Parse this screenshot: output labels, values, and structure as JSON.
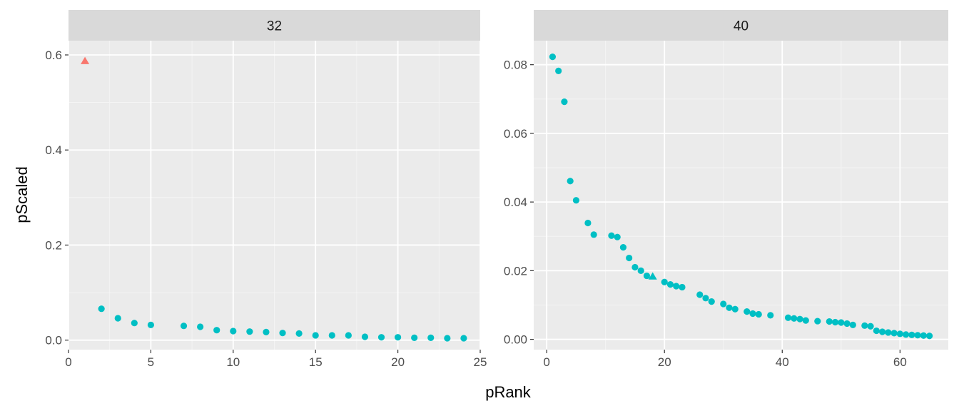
{
  "chart_data": {
    "type": "scatter",
    "layout": "faceted",
    "xlabel": "pRank",
    "ylabel": "pScaled",
    "grid": true,
    "colors": {
      "panel_bg": "#ebebeb",
      "strip_bg": "#d9d9d9",
      "grid_major": "#ffffff",
      "grid_minor": "#f5f5f5",
      "tick": "#333333",
      "group_triangle": "#f8766d",
      "group_circle": "#00bfc4"
    },
    "facets": [
      {
        "label": "32",
        "xlim": [
          0,
          25
        ],
        "ylim": [
          -0.02,
          0.63
        ],
        "xticks": [
          0,
          5,
          10,
          15,
          20,
          25
        ],
        "xtick_labels": [
          "0",
          "5",
          "10",
          "15",
          "20",
          "25"
        ],
        "yticks": [
          0,
          0.2,
          0.4,
          0.6
        ],
        "ytick_labels": [
          "0.0",
          "0.2",
          "0.4",
          "0.6"
        ],
        "points": [
          {
            "x": 1,
            "y": 0.587,
            "shape": "triangle",
            "color": "#f8766d"
          },
          {
            "x": 2,
            "y": 0.066,
            "shape": "circle",
            "color": "#00bfc4"
          },
          {
            "x": 3,
            "y": 0.046,
            "shape": "circle",
            "color": "#00bfc4"
          },
          {
            "x": 4,
            "y": 0.036,
            "shape": "circle",
            "color": "#00bfc4"
          },
          {
            "x": 5,
            "y": 0.032,
            "shape": "circle",
            "color": "#00bfc4"
          },
          {
            "x": 7,
            "y": 0.03,
            "shape": "circle",
            "color": "#00bfc4"
          },
          {
            "x": 8,
            "y": 0.028,
            "shape": "circle",
            "color": "#00bfc4"
          },
          {
            "x": 9,
            "y": 0.021,
            "shape": "circle",
            "color": "#00bfc4"
          },
          {
            "x": 10,
            "y": 0.019,
            "shape": "circle",
            "color": "#00bfc4"
          },
          {
            "x": 11,
            "y": 0.018,
            "shape": "circle",
            "color": "#00bfc4"
          },
          {
            "x": 12,
            "y": 0.017,
            "shape": "circle",
            "color": "#00bfc4"
          },
          {
            "x": 13,
            "y": 0.015,
            "shape": "circle",
            "color": "#00bfc4"
          },
          {
            "x": 14,
            "y": 0.014,
            "shape": "circle",
            "color": "#00bfc4"
          },
          {
            "x": 15,
            "y": 0.01,
            "shape": "circle",
            "color": "#00bfc4"
          },
          {
            "x": 16,
            "y": 0.01,
            "shape": "circle",
            "color": "#00bfc4"
          },
          {
            "x": 17,
            "y": 0.01,
            "shape": "circle",
            "color": "#00bfc4"
          },
          {
            "x": 18,
            "y": 0.007,
            "shape": "circle",
            "color": "#00bfc4"
          },
          {
            "x": 19,
            "y": 0.006,
            "shape": "circle",
            "color": "#00bfc4"
          },
          {
            "x": 20,
            "y": 0.006,
            "shape": "circle",
            "color": "#00bfc4"
          },
          {
            "x": 21,
            "y": 0.005,
            "shape": "circle",
            "color": "#00bfc4"
          },
          {
            "x": 22,
            "y": 0.005,
            "shape": "circle",
            "color": "#00bfc4"
          },
          {
            "x": 23,
            "y": 0.004,
            "shape": "circle",
            "color": "#00bfc4"
          },
          {
            "x": 24,
            "y": 0.004,
            "shape": "circle",
            "color": "#00bfc4"
          }
        ]
      },
      {
        "label": "40",
        "xlim": [
          -2.2,
          68.2
        ],
        "ylim": [
          -0.003,
          0.087
        ],
        "xticks": [
          0,
          20,
          40,
          60
        ],
        "xtick_labels": [
          "0",
          "20",
          "40",
          "60"
        ],
        "yticks": [
          0,
          0.02,
          0.04,
          0.06,
          0.08
        ],
        "ytick_labels": [
          "0.00",
          "0.02",
          "0.04",
          "0.06",
          "0.08"
        ],
        "points": [
          {
            "x": 1,
            "y": 0.0823,
            "shape": "circle",
            "color": "#00bfc4"
          },
          {
            "x": 2,
            "y": 0.0782,
            "shape": "circle",
            "color": "#00bfc4"
          },
          {
            "x": 3,
            "y": 0.0692,
            "shape": "circle",
            "color": "#00bfc4"
          },
          {
            "x": 4,
            "y": 0.0461,
            "shape": "circle",
            "color": "#00bfc4"
          },
          {
            "x": 5,
            "y": 0.0405,
            "shape": "circle",
            "color": "#00bfc4"
          },
          {
            "x": 7,
            "y": 0.0339,
            "shape": "circle",
            "color": "#00bfc4"
          },
          {
            "x": 8,
            "y": 0.0305,
            "shape": "circle",
            "color": "#00bfc4"
          },
          {
            "x": 11,
            "y": 0.0302,
            "shape": "circle",
            "color": "#00bfc4"
          },
          {
            "x": 12,
            "y": 0.0298,
            "shape": "circle",
            "color": "#00bfc4"
          },
          {
            "x": 13,
            "y": 0.0268,
            "shape": "circle",
            "color": "#00bfc4"
          },
          {
            "x": 14,
            "y": 0.0237,
            "shape": "circle",
            "color": "#00bfc4"
          },
          {
            "x": 15,
            "y": 0.021,
            "shape": "circle",
            "color": "#00bfc4"
          },
          {
            "x": 16,
            "y": 0.02,
            "shape": "circle",
            "color": "#00bfc4"
          },
          {
            "x": 17,
            "y": 0.0185,
            "shape": "circle",
            "color": "#00bfc4"
          },
          {
            "x": 18,
            "y": 0.0183,
            "shape": "triangle",
            "color": "#00bfc4"
          },
          {
            "x": 20,
            "y": 0.0167,
            "shape": "circle",
            "color": "#00bfc4"
          },
          {
            "x": 21,
            "y": 0.016,
            "shape": "circle",
            "color": "#00bfc4"
          },
          {
            "x": 22,
            "y": 0.0155,
            "shape": "circle",
            "color": "#00bfc4"
          },
          {
            "x": 23,
            "y": 0.0152,
            "shape": "circle",
            "color": "#00bfc4"
          },
          {
            "x": 26,
            "y": 0.013,
            "shape": "circle",
            "color": "#00bfc4"
          },
          {
            "x": 27,
            "y": 0.012,
            "shape": "circle",
            "color": "#00bfc4"
          },
          {
            "x": 28,
            "y": 0.011,
            "shape": "circle",
            "color": "#00bfc4"
          },
          {
            "x": 30,
            "y": 0.0103,
            "shape": "circle",
            "color": "#00bfc4"
          },
          {
            "x": 31,
            "y": 0.0092,
            "shape": "circle",
            "color": "#00bfc4"
          },
          {
            "x": 32,
            "y": 0.0088,
            "shape": "circle",
            "color": "#00bfc4"
          },
          {
            "x": 34,
            "y": 0.0081,
            "shape": "circle",
            "color": "#00bfc4"
          },
          {
            "x": 35,
            "y": 0.0075,
            "shape": "circle",
            "color": "#00bfc4"
          },
          {
            "x": 36,
            "y": 0.0073,
            "shape": "circle",
            "color": "#00bfc4"
          },
          {
            "x": 38,
            "y": 0.007,
            "shape": "circle",
            "color": "#00bfc4"
          },
          {
            "x": 41,
            "y": 0.0063,
            "shape": "circle",
            "color": "#00bfc4"
          },
          {
            "x": 42,
            "y": 0.0061,
            "shape": "circle",
            "color": "#00bfc4"
          },
          {
            "x": 43,
            "y": 0.0059,
            "shape": "circle",
            "color": "#00bfc4"
          },
          {
            "x": 44,
            "y": 0.0055,
            "shape": "circle",
            "color": "#00bfc4"
          },
          {
            "x": 46,
            "y": 0.0053,
            "shape": "circle",
            "color": "#00bfc4"
          },
          {
            "x": 48,
            "y": 0.0052,
            "shape": "circle",
            "color": "#00bfc4"
          },
          {
            "x": 49,
            "y": 0.005,
            "shape": "circle",
            "color": "#00bfc4"
          },
          {
            "x": 50,
            "y": 0.0049,
            "shape": "circle",
            "color": "#00bfc4"
          },
          {
            "x": 51,
            "y": 0.0046,
            "shape": "circle",
            "color": "#00bfc4"
          },
          {
            "x": 52,
            "y": 0.0042,
            "shape": "circle",
            "color": "#00bfc4"
          },
          {
            "x": 54,
            "y": 0.004,
            "shape": "circle",
            "color": "#00bfc4"
          },
          {
            "x": 55,
            "y": 0.0038,
            "shape": "circle",
            "color": "#00bfc4"
          },
          {
            "x": 56,
            "y": 0.0025,
            "shape": "circle",
            "color": "#00bfc4"
          },
          {
            "x": 57,
            "y": 0.0022,
            "shape": "circle",
            "color": "#00bfc4"
          },
          {
            "x": 58,
            "y": 0.002,
            "shape": "circle",
            "color": "#00bfc4"
          },
          {
            "x": 59,
            "y": 0.0018,
            "shape": "circle",
            "color": "#00bfc4"
          },
          {
            "x": 60,
            "y": 0.0016,
            "shape": "circle",
            "color": "#00bfc4"
          },
          {
            "x": 61,
            "y": 0.0014,
            "shape": "circle",
            "color": "#00bfc4"
          },
          {
            "x": 62,
            "y": 0.0013,
            "shape": "circle",
            "color": "#00bfc4"
          },
          {
            "x": 63,
            "y": 0.0012,
            "shape": "circle",
            "color": "#00bfc4"
          },
          {
            "x": 64,
            "y": 0.0011,
            "shape": "circle",
            "color": "#00bfc4"
          },
          {
            "x": 65,
            "y": 0.001,
            "shape": "circle",
            "color": "#00bfc4"
          }
        ]
      }
    ]
  }
}
